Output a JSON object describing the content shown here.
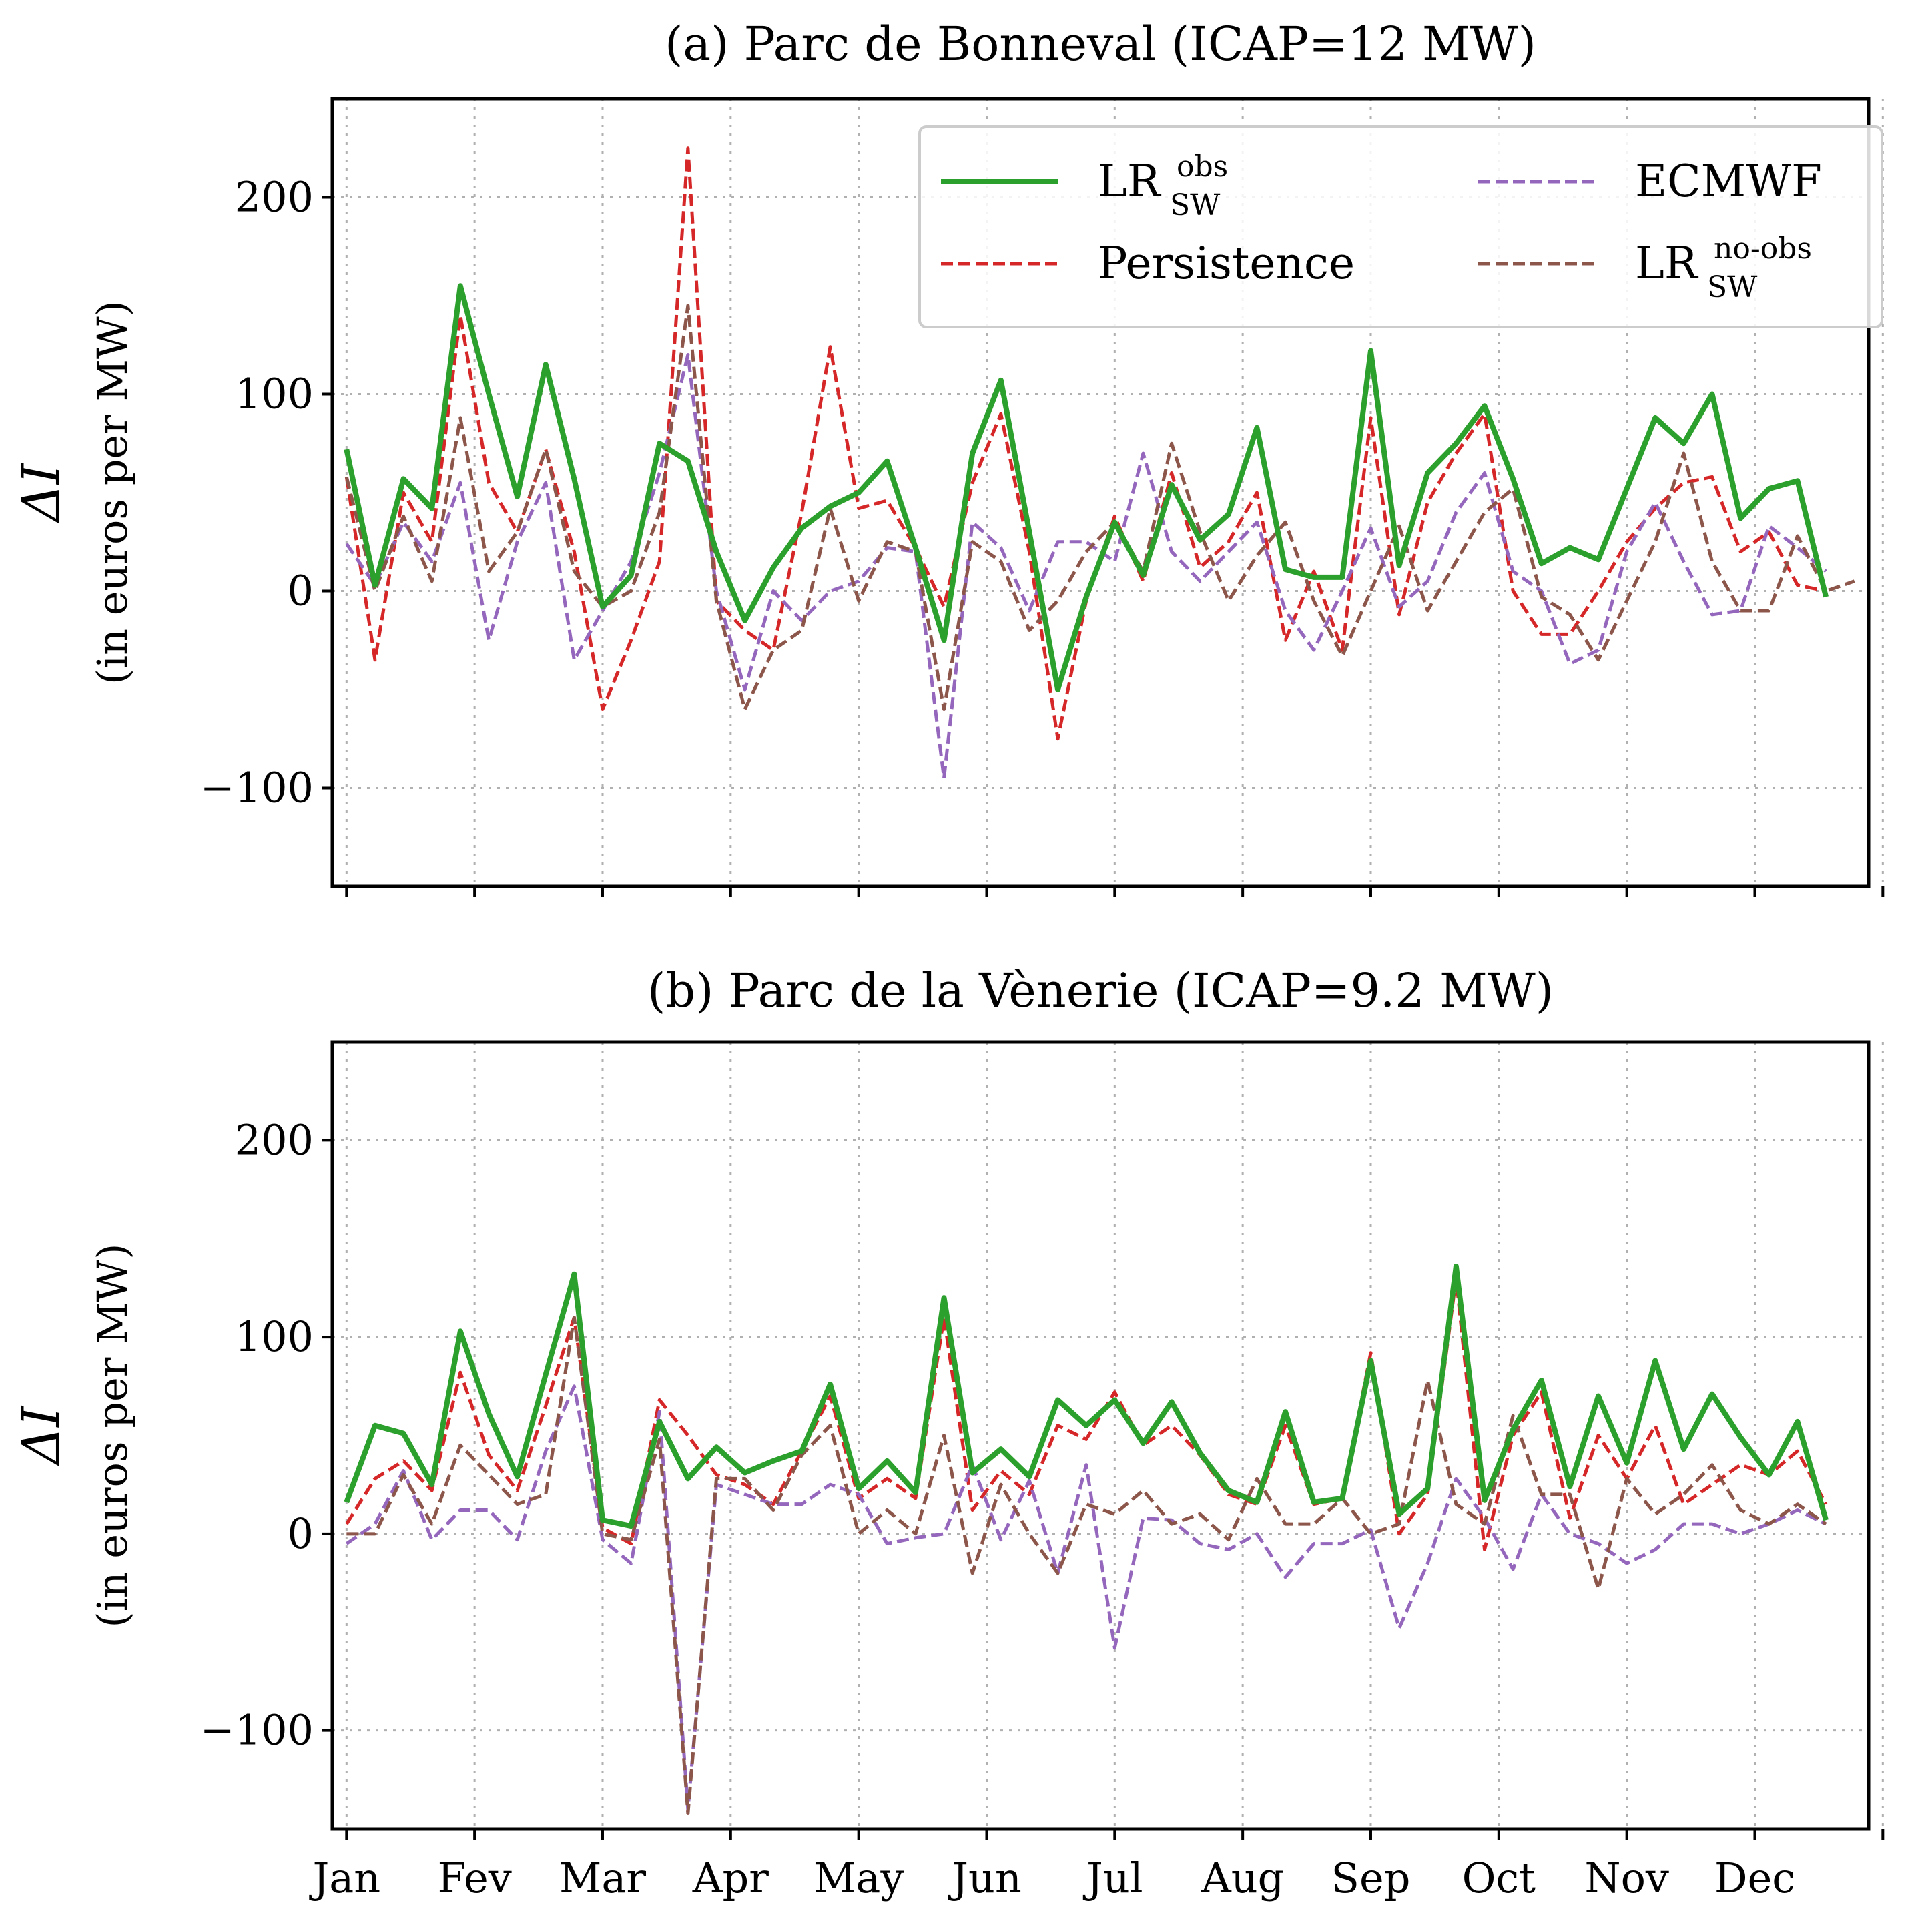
{
  "chart_data": [
    {
      "type": "line",
      "title": "(a) Parc de Bonneval (ICAP=12 MW)",
      "ylabel": "ΔI",
      "ylabel_sub": "(in euros per MW)",
      "xlabel": "",
      "ylim": [
        -150,
        250
      ],
      "yticks": [
        -100,
        0,
        100,
        200
      ],
      "ytick_labels": [
        "−100",
        "0",
        "100",
        "200"
      ],
      "x_ticklabels": [
        "Jan",
        "Fev",
        "Mar",
        "Apr",
        "May",
        "Jun",
        "Jul",
        "Aug",
        "Sep",
        "Oct",
        "Nov",
        "Dec"
      ],
      "x_ticklabels_visible": false,
      "xlim": [
        -0.5,
        53.5
      ],
      "x_tick_positions": [
        0,
        4.5,
        9,
        13.5,
        18,
        22.5,
        27,
        31.5,
        36,
        40.5,
        45,
        49.5,
        54
      ],
      "grid": true,
      "legend_position": "upper-right",
      "legend": [
        {
          "base": "LR",
          "sup": "obs",
          "sub": "SW",
          "color": "#2ca02c",
          "style": "solid"
        },
        {
          "base": "Persistence",
          "sup": "",
          "sub": "",
          "color": "#d62728",
          "style": "dashed"
        },
        {
          "base": "ECMWF",
          "sup": "",
          "sub": "",
          "color": "#9467bd",
          "style": "dashed"
        },
        {
          "base": "LR",
          "sup": "no-obs",
          "sub": "SW",
          "color": "#8c564b",
          "style": "dashed"
        }
      ],
      "series": [
        {
          "name": "LR_SW^obs",
          "color": "#2ca02c",
          "style": "solid",
          "values": [
            72,
            3,
            57,
            42,
            155,
            100,
            48,
            115,
            57,
            -8,
            8,
            75,
            66,
            20,
            -15,
            12,
            32,
            43,
            50,
            66,
            22,
            -25,
            70,
            107,
            30,
            -50,
            -3,
            35,
            8,
            54,
            26,
            39,
            83,
            11,
            7,
            7,
            122,
            13,
            60,
            75,
            94,
            57,
            14,
            22,
            16,
            52,
            88,
            75,
            100,
            37,
            52,
            56,
            -3
          ]
        },
        {
          "name": "Persistence",
          "color": "#d62728",
          "style": "dashed",
          "values": [
            58,
            -35,
            50,
            25,
            140,
            55,
            30,
            72,
            20,
            -60,
            -25,
            15,
            225,
            -5,
            -20,
            -30,
            40,
            124,
            42,
            46,
            22,
            -8,
            55,
            90,
            20,
            -75,
            -5,
            38,
            5,
            60,
            12,
            25,
            50,
            -25,
            10,
            -30,
            88,
            -12,
            45,
            70,
            90,
            0,
            -22,
            -22,
            0,
            25,
            42,
            55,
            58,
            20,
            30,
            3,
            0
          ]
        },
        {
          "name": "ECMWF",
          "color": "#9467bd",
          "style": "dashed",
          "values": [
            24,
            3,
            35,
            15,
            55,
            -25,
            25,
            55,
            -35,
            -10,
            15,
            60,
            120,
            0,
            -50,
            0,
            -15,
            0,
            5,
            22,
            20,
            -95,
            35,
            22,
            -10,
            25,
            25,
            15,
            70,
            20,
            5,
            20,
            35,
            -10,
            -30,
            0,
            32,
            -8,
            5,
            40,
            60,
            10,
            0,
            -37,
            -30,
            20,
            45,
            15,
            -12,
            -10,
            33,
            22,
            10
          ]
        },
        {
          "name": "LR_SW^no-obs",
          "color": "#8c564b",
          "style": "dashed",
          "values": [
            58,
            0,
            38,
            5,
            88,
            10,
            30,
            72,
            10,
            -8,
            0,
            40,
            145,
            -5,
            -60,
            -30,
            -20,
            42,
            -5,
            25,
            20,
            -60,
            25,
            15,
            -20,
            -5,
            20,
            35,
            10,
            75,
            30,
            -5,
            18,
            35,
            -5,
            -33,
            0,
            33,
            -10,
            15,
            40,
            52,
            -3,
            -12,
            -35,
            -5,
            25,
            70,
            15,
            -10,
            -10,
            28,
            0,
            5
          ]
        }
      ]
    },
    {
      "type": "line",
      "title": "(b) Parc de la Vènerie (ICAP=9.2 MW)",
      "ylabel": "ΔI",
      "ylabel_sub": "(in euros per MW)",
      "xlabel": "",
      "ylim": [
        -150,
        250
      ],
      "yticks": [
        -100,
        0,
        100,
        200
      ],
      "ytick_labels": [
        "−100",
        "0",
        "100",
        "200"
      ],
      "x_ticklabels": [
        "Jan",
        "Fev",
        "Mar",
        "Apr",
        "May",
        "Jun",
        "Jul",
        "Aug",
        "Sep",
        "Oct",
        "Nov",
        "Dec"
      ],
      "x_ticklabels_visible": true,
      "xlim": [
        -0.5,
        53.5
      ],
      "x_tick_positions": [
        0,
        4.5,
        9,
        13.5,
        18,
        22.5,
        27,
        31.5,
        36,
        40.5,
        45,
        49.5,
        54
      ],
      "grid": true,
      "legend_position": "none",
      "series": [
        {
          "name": "LR_SW^obs",
          "color": "#2ca02c",
          "style": "solid",
          "values": [
            16,
            55,
            51,
            25,
            103,
            61,
            29,
            81,
            132,
            7,
            4,
            57,
            28,
            44,
            31,
            37,
            42,
            76,
            23,
            37,
            21,
            120,
            31,
            43,
            29,
            68,
            55,
            68,
            46,
            67,
            41,
            22,
            16,
            62,
            16,
            18,
            88,
            10,
            23,
            136,
            17,
            53,
            78,
            24,
            70,
            36,
            88,
            43,
            71,
            49,
            30,
            57,
            7
          ]
        },
        {
          "name": "Persistence",
          "color": "#d62728",
          "style": "dashed",
          "values": [
            5,
            28,
            37,
            22,
            82,
            40,
            22,
            65,
            110,
            3,
            -5,
            68,
            50,
            30,
            25,
            15,
            42,
            70,
            18,
            28,
            18,
            110,
            12,
            32,
            20,
            55,
            48,
            72,
            45,
            55,
            40,
            20,
            15,
            55,
            15,
            18,
            92,
            0,
            20,
            130,
            -8,
            50,
            72,
            8,
            50,
            28,
            55,
            15,
            25,
            35,
            30,
            42,
            15
          ]
        },
        {
          "name": "ECMWF",
          "color": "#9467bd",
          "style": "dashed",
          "values": [
            -5,
            5,
            32,
            -3,
            12,
            12,
            -3,
            42,
            75,
            -3,
            -15,
            62,
            -140,
            25,
            20,
            15,
            15,
            25,
            20,
            -5,
            -2,
            0,
            35,
            -3,
            27,
            -20,
            35,
            -58,
            8,
            7,
            -5,
            -8,
            0,
            -22,
            -5,
            -5,
            2,
            -48,
            -15,
            28,
            8,
            -18,
            20,
            0,
            -5,
            -15,
            -8,
            5,
            5,
            0,
            5,
            12,
            5
          ]
        },
        {
          "name": "LR_SW^no-obs",
          "color": "#8c564b",
          "style": "dashed",
          "values": [
            0,
            0,
            30,
            5,
            45,
            30,
            15,
            20,
            110,
            0,
            -3,
            48,
            -142,
            28,
            28,
            12,
            40,
            55,
            0,
            12,
            0,
            50,
            -20,
            25,
            0,
            -20,
            15,
            10,
            22,
            5,
            10,
            -3,
            28,
            5,
            5,
            18,
            0,
            5,
            78,
            15,
            5,
            60,
            20,
            20,
            -28,
            28,
            10,
            20,
            35,
            12,
            5,
            15,
            5
          ]
        }
      ]
    }
  ]
}
